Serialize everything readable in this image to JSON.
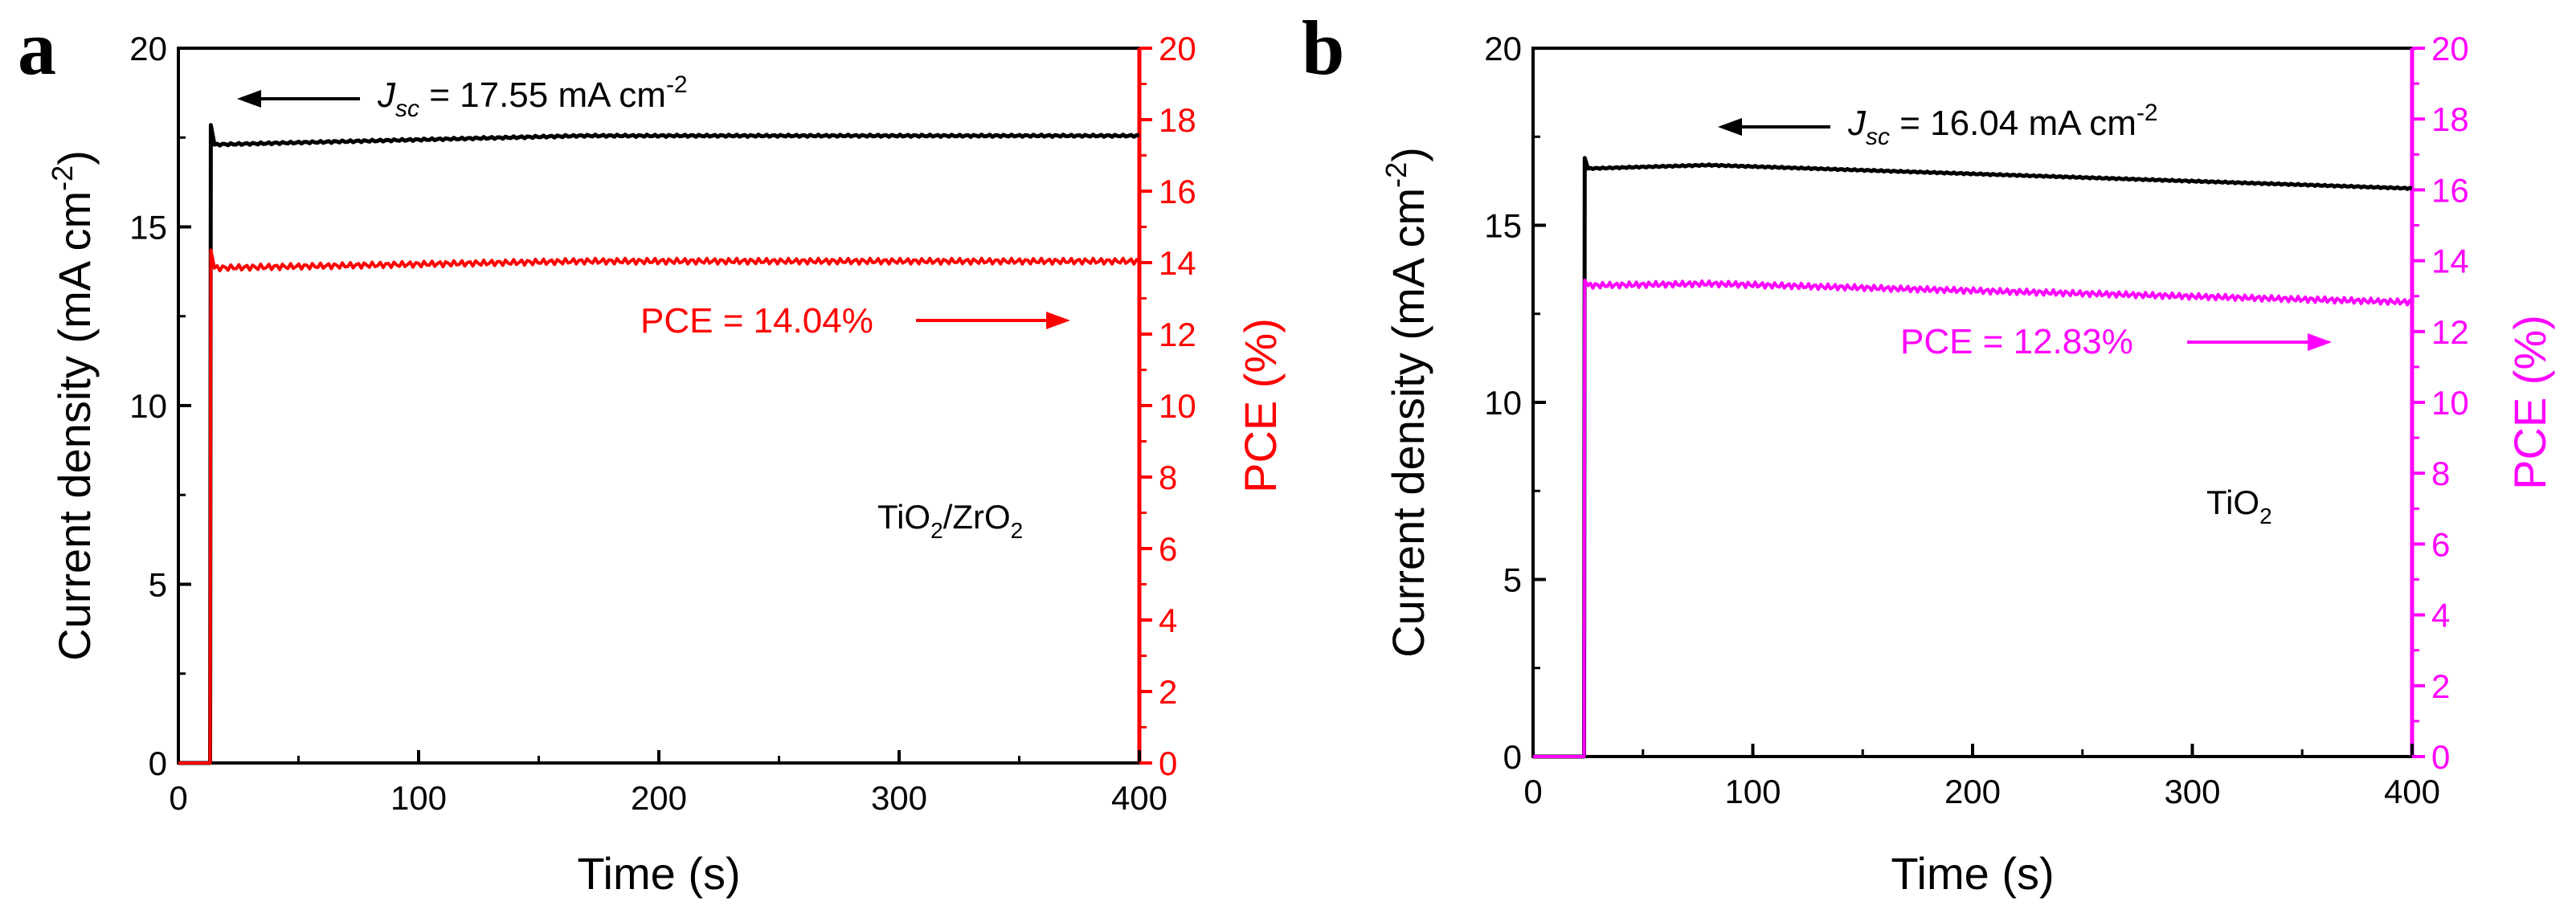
{
  "chart_data": [
    {
      "type": "line",
      "panel_label": "a",
      "xlabel": "Time (s)",
      "ylabel_main": "Current density (mA cm",
      "ylabel_sup": "-2",
      "ylabel_close": ")",
      "ylabel_right": "PCE (%)",
      "xlim": [
        0,
        400
      ],
      "ylim_left": [
        0,
        20
      ],
      "ylim_right": [
        0,
        20
      ],
      "x_ticks": [
        "0",
        "100",
        "200",
        "300",
        "400"
      ],
      "y_left_ticks": [
        "0",
        "5",
        "10",
        "15",
        "20"
      ],
      "y_right_ticks": [
        "0",
        "2",
        "4",
        "6",
        "8",
        "10",
        "12",
        "14",
        "16",
        "18",
        "20"
      ],
      "right_axis_color": "#ff0000",
      "jsc_annotation": {
        "prefix": "J",
        "sub": "sc",
        "text": " = 17.55 mA cm",
        "sup": "-2"
      },
      "pce_annotation": "PCE = 14.04%",
      "sample_label": {
        "parts": [
          "TiO",
          "2",
          "/ZrO",
          "2"
        ]
      },
      "series": [
        {
          "name": "Jsc",
          "axis": "left",
          "color": "#000000",
          "onset": 13.5,
          "peak": 17.85,
          "start": 17.3,
          "end": 17.55,
          "ripple": 0.03
        },
        {
          "name": "PCE",
          "axis": "right",
          "color": "#ff0000",
          "onset": 13.5,
          "peak": 14.35,
          "start": 13.85,
          "end": 14.04,
          "ripple": 0.08
        }
      ]
    },
    {
      "type": "line",
      "panel_label": "b",
      "xlabel": "Time (s)",
      "ylabel_main": "Current density (mA cm",
      "ylabel_sup": "-2",
      "ylabel_close": ")",
      "ylabel_right": "PCE (%)",
      "xlim": [
        0,
        400
      ],
      "ylim_left": [
        0,
        20
      ],
      "ylim_right": [
        0,
        20
      ],
      "x_ticks": [
        "0",
        "100",
        "200",
        "300",
        "400"
      ],
      "y_left_ticks": [
        "0",
        "5",
        "10",
        "15",
        "20"
      ],
      "y_right_ticks": [
        "0",
        "2",
        "4",
        "6",
        "8",
        "10",
        "12",
        "14",
        "16",
        "18",
        "20"
      ],
      "right_axis_color": "#ff00ff",
      "jsc_annotation": {
        "prefix": "J",
        "sub": "sc",
        "text": " = 16.04 mA cm",
        "sup": "-2"
      },
      "pce_annotation": "PCE = 12.83%",
      "sample_label": {
        "parts": [
          "TiO",
          "2",
          "",
          ""
        ]
      },
      "series": [
        {
          "name": "Jsc",
          "axis": "left",
          "color": "#000000",
          "onset": 23.5,
          "peak": 16.9,
          "start": 16.6,
          "mid": 16.7,
          "end": 16.04,
          "ripple": 0.02
        },
        {
          "name": "PCE",
          "axis": "right",
          "color": "#ff00ff",
          "onset": 23.5,
          "peak": 13.45,
          "start": 13.3,
          "mid": 13.35,
          "end": 12.83,
          "ripple": 0.08
        }
      ]
    }
  ]
}
